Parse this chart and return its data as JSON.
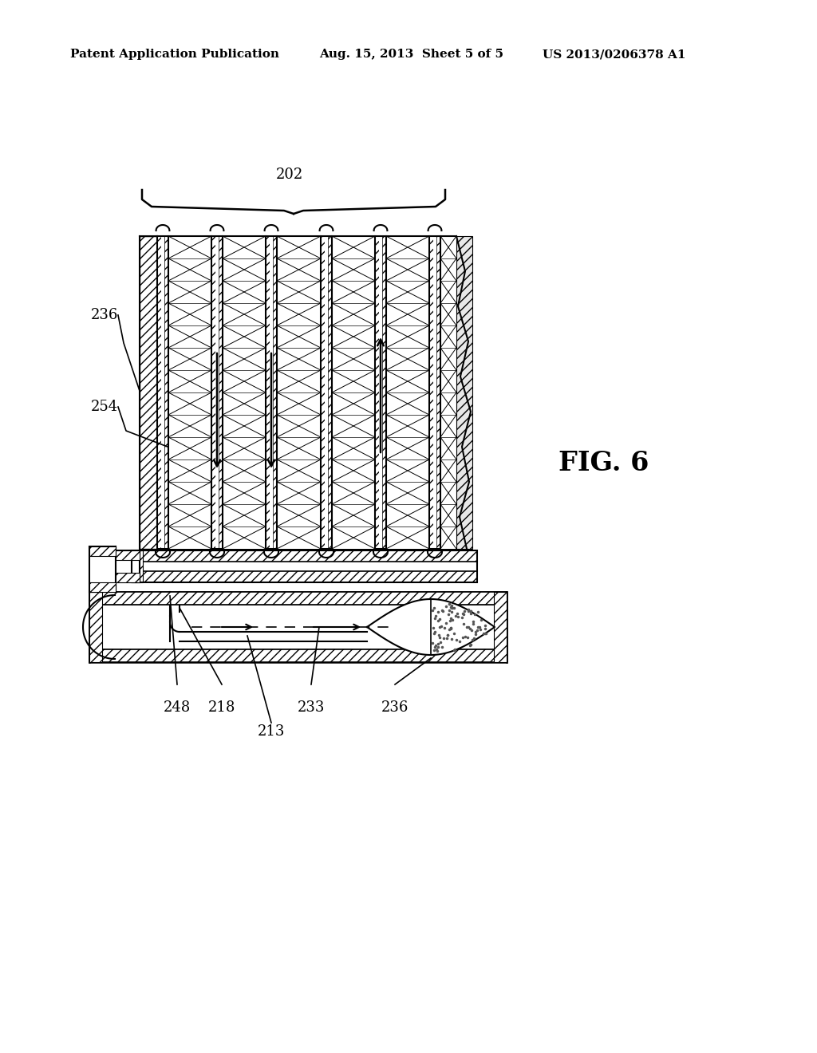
{
  "background_color": "#ffffff",
  "header_left": "Patent Application Publication",
  "header_center": "Aug. 15, 2013  Sheet 5 of 5",
  "header_right": "US 2013/0206378 A1",
  "fig_label": "FIG. 6",
  "label_202": "202",
  "label_236_top": "236",
  "label_254": "254",
  "label_248": "248",
  "label_218": "218",
  "label_213": "213",
  "label_233": "233",
  "label_236_bot": "236"
}
